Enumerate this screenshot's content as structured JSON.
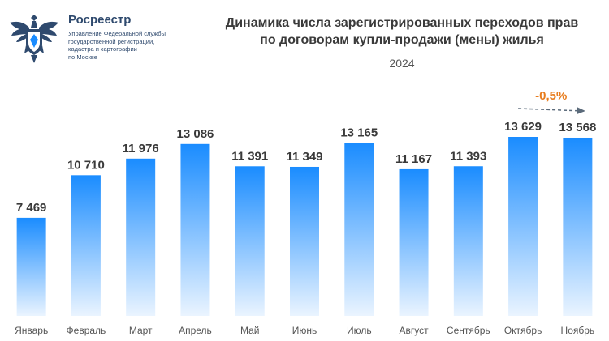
{
  "logo": {
    "name": "Росреестр",
    "subtitle": [
      "Управление Федеральной службы",
      "государственной регистрации,",
      "кадастра и картографии",
      "по Москве"
    ]
  },
  "chart_data": {
    "type": "bar",
    "title_lines": [
      "Динамика числа зарегистрированных переходов прав",
      "по договорам купли-продажи (мены) жилья"
    ],
    "subtitle": "2024",
    "categories": [
      "Январь",
      "Февраль",
      "Март",
      "Апрель",
      "Май",
      "Июнь",
      "Июль",
      "Август",
      "Сентябрь",
      "Октябрь",
      "Ноябрь"
    ],
    "values": [
      7469,
      10710,
      11976,
      13086,
      11391,
      11349,
      13165,
      11167,
      11393,
      13629,
      13568
    ],
    "value_labels": [
      "7 469",
      "10 710",
      "11 976",
      "13 086",
      "11 391",
      "11 349",
      "13 165",
      "11 167",
      "11 393",
      "13 629",
      "13 568"
    ],
    "ylim": [
      0,
      13629
    ],
    "annotation": {
      "text": "-0,5%",
      "from": "Октябрь",
      "to": "Ноябрь",
      "color": "#e87d1e"
    },
    "bar_color_top": "#1a8cff",
    "bar_color_bottom": "#eaf4ff"
  }
}
